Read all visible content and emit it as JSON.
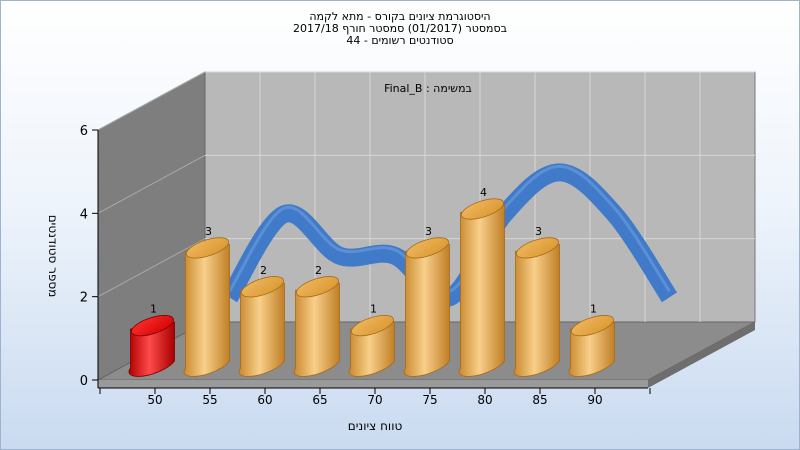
{
  "title_lines": [
    "היסטוגרמת ציונים בקורס - מתא לקמה",
    "בסמסטר  (01/2017)  סמסטר חורף 2017/18",
    "סטודנטים רשומים - 44"
  ],
  "chart_data": {
    "type": "bar",
    "xlabel": "טווח ציונים",
    "ylabel": "מספר סטודנטים",
    "annotation": "במשימה : Final_B",
    "categories": [
      "50",
      "55",
      "60",
      "65",
      "70",
      "75",
      "80",
      "85",
      "90"
    ],
    "values": [
      1,
      3,
      2,
      2,
      1,
      3,
      4,
      3,
      1
    ],
    "yticks": [
      0,
      2,
      4,
      6
    ],
    "ylim": [
      0,
      6
    ],
    "grid": true,
    "highlight_index": 0,
    "colors": {
      "bar": "#e8a84a",
      "highlight": "#e01010",
      "trend": "#3a76c8",
      "wall": "#b7b7b7",
      "side_wall": "#7d7d7d",
      "floor": "#8f8f8f"
    }
  }
}
